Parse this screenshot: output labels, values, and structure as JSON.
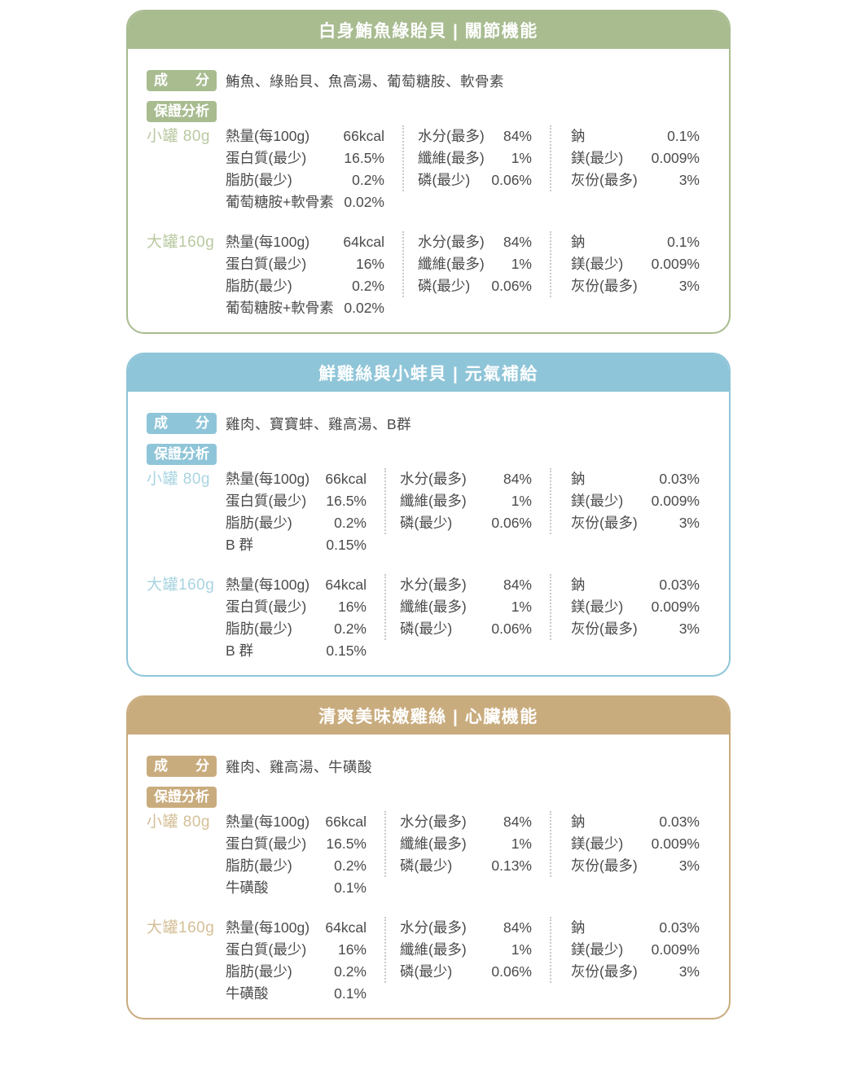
{
  "cards": [
    {
      "title": "白身鮪魚綠貽貝 | 關節機能",
      "theme_color": "#a8bc90",
      "light_color": "#b9c9a1",
      "ingredients_label": "成分",
      "ingredients": "鮪魚、綠貽貝、魚高湯、葡萄糖胺、軟骨素",
      "analysis_label": "保證分析",
      "sections": [
        {
          "size": "小罐 80g",
          "col1": [
            {
              "label": "熱量(每100g)",
              "value": "66kcal"
            },
            {
              "label": "蛋白質(最少)",
              "value": "16.5%"
            },
            {
              "label": "脂肪(最少)",
              "value": "0.2%"
            },
            {
              "label": "葡萄糖胺+軟骨素",
              "value": "0.02%"
            }
          ],
          "col2": [
            {
              "label": "水分(最多)",
              "value": "84%"
            },
            {
              "label": "纖維(最多)",
              "value": "1%"
            },
            {
              "label": "磷(最少)",
              "value": "0.06%"
            }
          ],
          "col3": [
            {
              "label": "鈉",
              "value": "0.1%"
            },
            {
              "label": "鎂(最少)",
              "value": "0.009%"
            },
            {
              "label": "灰份(最多)",
              "value": "3%"
            }
          ]
        },
        {
          "size": "大罐160g",
          "col1": [
            {
              "label": "熱量(每100g)",
              "value": "64kcal"
            },
            {
              "label": "蛋白質(最少)",
              "value": "16%"
            },
            {
              "label": "脂肪(最少)",
              "value": "0.2%"
            },
            {
              "label": "葡萄糖胺+軟骨素",
              "value": "0.02%"
            }
          ],
          "col2": [
            {
              "label": "水分(最多)",
              "value": "84%"
            },
            {
              "label": "纖維(最多)",
              "value": "1%"
            },
            {
              "label": "磷(最少)",
              "value": "0.06%"
            }
          ],
          "col3": [
            {
              "label": "鈉",
              "value": "0.1%"
            },
            {
              "label": "鎂(最少)",
              "value": "0.009%"
            },
            {
              "label": "灰份(最多)",
              "value": "3%"
            }
          ]
        }
      ]
    },
    {
      "title": "鮮雞絲與小蚌貝 | 元氣補給",
      "theme_color": "#8fc5d8",
      "light_color": "#a9d4e1",
      "ingredients_label": "成分",
      "ingredients": "雞肉、寶寶蚌、雞高湯、B群",
      "analysis_label": "保證分析",
      "sections": [
        {
          "size": "小罐 80g",
          "col1": [
            {
              "label": "熱量(每100g)",
              "value": "66kcal"
            },
            {
              "label": "蛋白質(最少)",
              "value": "16.5%"
            },
            {
              "label": "脂肪(最少)",
              "value": "0.2%"
            },
            {
              "label": "B 群",
              "value": "0.15%"
            }
          ],
          "col2": [
            {
              "label": "水分(最多)",
              "value": "84%"
            },
            {
              "label": "纖維(最多)",
              "value": "1%"
            },
            {
              "label": "磷(最少)",
              "value": "0.06%"
            }
          ],
          "col3": [
            {
              "label": "鈉",
              "value": "0.03%"
            },
            {
              "label": "鎂(最少)",
              "value": "0.009%"
            },
            {
              "label": "灰份(最多)",
              "value": "3%"
            }
          ]
        },
        {
          "size": "大罐160g",
          "col1": [
            {
              "label": "熱量(每100g)",
              "value": "64kcal"
            },
            {
              "label": "蛋白質(最少)",
              "value": "16%"
            },
            {
              "label": "脂肪(最少)",
              "value": "0.2%"
            },
            {
              "label": "B 群",
              "value": "0.15%"
            }
          ],
          "col2": [
            {
              "label": "水分(最多)",
              "value": "84%"
            },
            {
              "label": "纖維(最多)",
              "value": "1%"
            },
            {
              "label": "磷(最少)",
              "value": "0.06%"
            }
          ],
          "col3": [
            {
              "label": "鈉",
              "value": "0.03%"
            },
            {
              "label": "鎂(最少)",
              "value": "0.009%"
            },
            {
              "label": "灰份(最多)",
              "value": "3%"
            }
          ]
        }
      ]
    },
    {
      "title": "清爽美味嫩雞絲 | 心臟機能",
      "theme_color": "#c9ac7e",
      "light_color": "#d5bf97",
      "ingredients_label": "成分",
      "ingredients": "雞肉、雞高湯、牛磺酸",
      "analysis_label": "保證分析",
      "sections": [
        {
          "size": "小罐 80g",
          "col1": [
            {
              "label": "熱量(每100g)",
              "value": "66kcal"
            },
            {
              "label": "蛋白質(最少)",
              "value": "16.5%"
            },
            {
              "label": "脂肪(最少)",
              "value": "0.2%"
            },
            {
              "label": "牛磺酸",
              "value": "0.1%"
            }
          ],
          "col2": [
            {
              "label": "水分(最多)",
              "value": "84%"
            },
            {
              "label": "纖維(最多)",
              "value": "1%"
            },
            {
              "label": "磷(最少)",
              "value": "0.13%"
            }
          ],
          "col3": [
            {
              "label": "鈉",
              "value": "0.03%"
            },
            {
              "label": "鎂(最少)",
              "value": "0.009%"
            },
            {
              "label": "灰份(最多)",
              "value": "3%"
            }
          ]
        },
        {
          "size": "大罐160g",
          "col1": [
            {
              "label": "熱量(每100g)",
              "value": "64kcal"
            },
            {
              "label": "蛋白質(最少)",
              "value": "16%"
            },
            {
              "label": "脂肪(最少)",
              "value": "0.2%"
            },
            {
              "label": "牛磺酸",
              "value": "0.1%"
            }
          ],
          "col2": [
            {
              "label": "水分(最多)",
              "value": "84%"
            },
            {
              "label": "纖維(最多)",
              "value": "1%"
            },
            {
              "label": "磷(最少)",
              "value": "0.06%"
            }
          ],
          "col3": [
            {
              "label": "鈉",
              "value": "0.03%"
            },
            {
              "label": "鎂(最少)",
              "value": "0.009%"
            },
            {
              "label": "灰份(最多)",
              "value": "3%"
            }
          ]
        }
      ]
    }
  ]
}
